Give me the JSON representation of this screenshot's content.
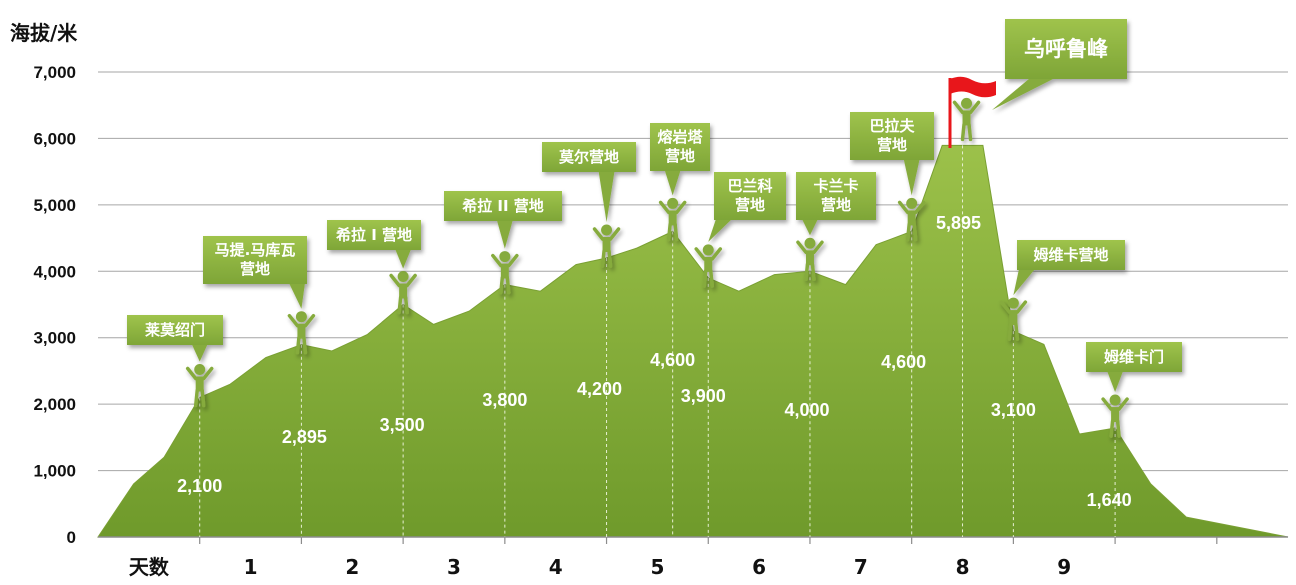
{
  "chart_data": {
    "type": "area",
    "ylabel": "海拔/米",
    "xlabel": "天数",
    "ylim": [
      0,
      7000
    ],
    "yticks": [
      "0",
      "1,000",
      "2,000",
      "3,000",
      "4,000",
      "5,000",
      "6,000",
      "7,000"
    ],
    "yticks_values": [
      0,
      1000,
      2000,
      3000,
      4000,
      5000,
      6000,
      7000
    ],
    "xlim": [
      -1,
      10.7
    ],
    "x_tick_labels": [
      {
        "x": -0.5,
        "label": "天数"
      },
      {
        "x": 0.5,
        "label": "1"
      },
      {
        "x": 1.5,
        "label": "2"
      },
      {
        "x": 2.5,
        "label": "3"
      },
      {
        "x": 3.5,
        "label": "4"
      },
      {
        "x": 4.5,
        "label": "5"
      },
      {
        "x": 5.5,
        "label": "6"
      },
      {
        "x": 6.5,
        "label": "7"
      },
      {
        "x": 7.5,
        "label": "8"
      },
      {
        "x": 8.5,
        "label": "9"
      }
    ],
    "x_boundaries": [
      0,
      1,
      2,
      3,
      4,
      5,
      6,
      7,
      8,
      9,
      10
    ],
    "grid": true,
    "color": "#8fb33e",
    "profile": [
      [
        -1,
        0
      ],
      [
        -0.65,
        800
      ],
      [
        -0.35,
        1200
      ],
      [
        0,
        2100
      ],
      [
        0.3,
        2300
      ],
      [
        0.65,
        2700
      ],
      [
        1,
        2895
      ],
      [
        1.3,
        2800
      ],
      [
        1.65,
        3050
      ],
      [
        2,
        3500
      ],
      [
        2.3,
        3200
      ],
      [
        2.65,
        3400
      ],
      [
        3,
        3800
      ],
      [
        3.35,
        3700
      ],
      [
        3.7,
        4100
      ],
      [
        4,
        4200
      ],
      [
        4.3,
        4350
      ],
      [
        4.65,
        4600
      ],
      [
        5,
        3900
      ],
      [
        5.3,
        3700
      ],
      [
        5.65,
        3950
      ],
      [
        6,
        4000
      ],
      [
        6.35,
        3800
      ],
      [
        6.65,
        4400
      ],
      [
        7,
        4600
      ],
      [
        7.3,
        5895
      ],
      [
        7.7,
        5895
      ],
      [
        8,
        3100
      ],
      [
        8.3,
        2900
      ],
      [
        8.65,
        1550
      ],
      [
        9,
        1640
      ],
      [
        9.35,
        800
      ],
      [
        9.7,
        300
      ],
      [
        10.7,
        0
      ]
    ],
    "altitude_labels": [
      {
        "x": 0,
        "y": 2100,
        "label": "2,100"
      },
      {
        "x": 1,
        "y": 2895,
        "label": "2,895"
      },
      {
        "x": 2,
        "y": 3500,
        "label": "3,500"
      },
      {
        "x": 3,
        "y": 3800,
        "label": "3,800"
      },
      {
        "x": 4,
        "y": 4200,
        "label": "4,200"
      },
      {
        "x": 4.65,
        "y": 4600,
        "label": "4,600"
      },
      {
        "x": 5,
        "y": 3900,
        "label": "3,900"
      },
      {
        "x": 6,
        "y": 4000,
        "label": "4,000"
      },
      {
        "x": 7,
        "y": 4600,
        "label": "4,600"
      },
      {
        "x": 7.5,
        "y": 5895,
        "label": "5,895"
      },
      {
        "x": 8,
        "y": 3100,
        "label": "3,100"
      },
      {
        "x": 9,
        "y": 1640,
        "label": "1,640"
      }
    ],
    "camps": [
      {
        "x": 0,
        "y": 2100,
        "lines": [
          "莱莫绍门"
        ]
      },
      {
        "x": 1,
        "y": 2895,
        "lines": [
          "马提.马库瓦",
          "营地"
        ]
      },
      {
        "x": 2,
        "y": 3500,
        "lines": [
          "希拉 I 营地"
        ]
      },
      {
        "x": 3,
        "y": 3800,
        "lines": [
          "希拉 II 营地"
        ]
      },
      {
        "x": 4,
        "y": 4200,
        "lines": [
          "莫尔营地"
        ]
      },
      {
        "x": 4.65,
        "y": 4600,
        "lines": [
          "熔岩塔",
          "营地"
        ]
      },
      {
        "x": 5,
        "y": 3900,
        "lines": [
          "巴兰科",
          "营地"
        ]
      },
      {
        "x": 6,
        "y": 4000,
        "lines": [
          "卡兰卡",
          "营地"
        ]
      },
      {
        "x": 7,
        "y": 4600,
        "lines": [
          "巴拉夫",
          "营地"
        ]
      },
      {
        "x": 8,
        "y": 3100,
        "lines": [
          "姆维卡营地"
        ]
      },
      {
        "x": 9,
        "y": 1640,
        "lines": [
          "姆维卡门"
        ]
      }
    ],
    "summit": {
      "x": 7.5,
      "y": 5895,
      "label": "乌呼鲁峰",
      "flag_color": "#e8161b"
    }
  }
}
